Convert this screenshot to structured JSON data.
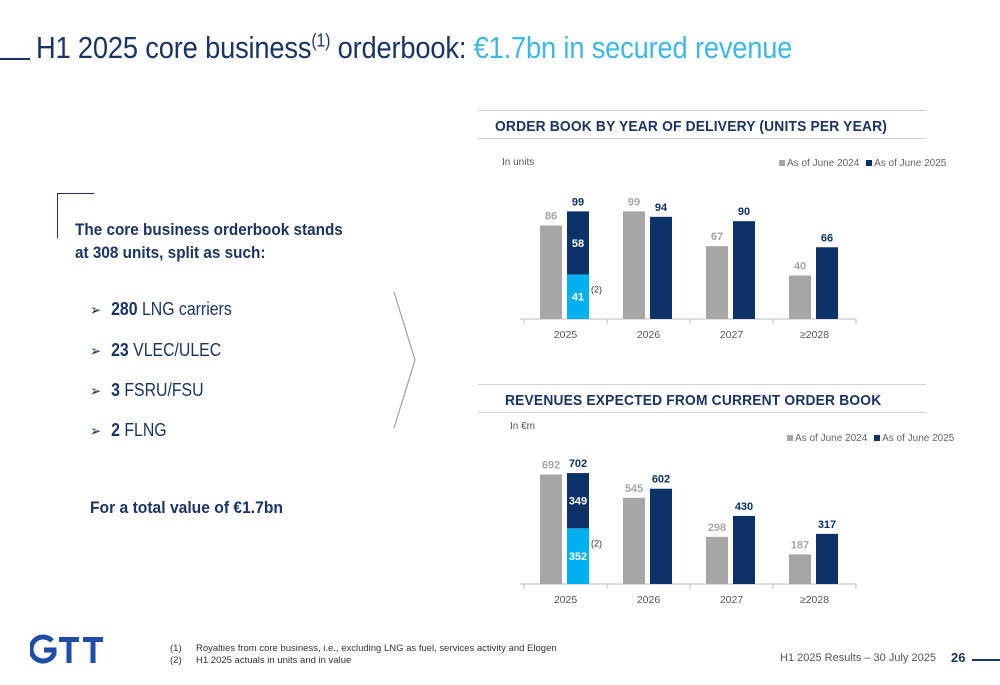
{
  "slide": {
    "title_main": "H1 2025 core business",
    "title_sup": "(1)",
    "title_mid": " orderbook: ",
    "title_accent": "€1.7bn in secured revenue"
  },
  "left": {
    "intro": "The core business orderbook stands at 308 units, split as such:",
    "bullets": [
      {
        "num": "280",
        "text": " LNG carriers"
      },
      {
        "num": "23",
        "text": " VLEC/ULEC"
      },
      {
        "num": "3",
        "text": " FSRU/FSU"
      },
      {
        "num": "2",
        "text": " FLNG"
      }
    ],
    "total": "For a total value of €1.7bn",
    "arrow_glyph": "➢"
  },
  "colors": {
    "navy": "#0b3369",
    "grey": "#a6a6a6",
    "cyan": "#00b0ef",
    "accent": "#3fb8e6"
  },
  "chart_data": [
    {
      "type": "bar",
      "title": "ORDER BOOK BY YEAR OF DELIVERY (UNITS PER YEAR)",
      "unit_label": "In units",
      "categories": [
        "2025",
        "2026",
        "2027",
        "≥2028"
      ],
      "series": [
        {
          "name": "As of June 2024",
          "values": [
            86,
            99,
            67,
            40
          ],
          "labels": [
            "86",
            "99",
            "67",
            "40"
          ]
        },
        {
          "name": "As of June 2025",
          "values": [
            99,
            94,
            90,
            66
          ],
          "labels": [
            "99",
            "94",
            "90",
            "66"
          ]
        }
      ],
      "stack_2025": {
        "bottom": 41,
        "top": 58,
        "bottom_label": "41",
        "top_label": "58"
      },
      "note": "(2)",
      "ylim": [
        0,
        115
      ]
    },
    {
      "type": "bar",
      "title": "REVENUES EXPECTED FROM CURRENT ORDER BOOK",
      "unit_label": "In €m",
      "categories": [
        "2025",
        "2026",
        "2027",
        "≥2028"
      ],
      "series": [
        {
          "name": "As of June 2024",
          "values": [
            692,
            545,
            298,
            187
          ],
          "labels": [
            "692",
            "545",
            "298",
            "187"
          ]
        },
        {
          "name": "As of June 2025",
          "values": [
            702,
            602,
            430,
            317
          ],
          "labels": [
            "702",
            "602",
            "430",
            "317"
          ]
        }
      ],
      "stack_2025": {
        "bottom": 352,
        "top": 349,
        "bottom_label": "352",
        "top_label": "349"
      },
      "note": "(2)",
      "ylim": [
        0,
        790
      ]
    }
  ],
  "footnotes": [
    {
      "num": "(1)",
      "text": "Royalties from core business, i.e., excluding LNG as fuel, services activity and Elogen"
    },
    {
      "num": "(2)",
      "text": "H1 2025 actuals in units and in value"
    }
  ],
  "footer": {
    "text": "H1 2025 Results – 30 July 2025",
    "page": "26",
    "logo": "GTT"
  }
}
